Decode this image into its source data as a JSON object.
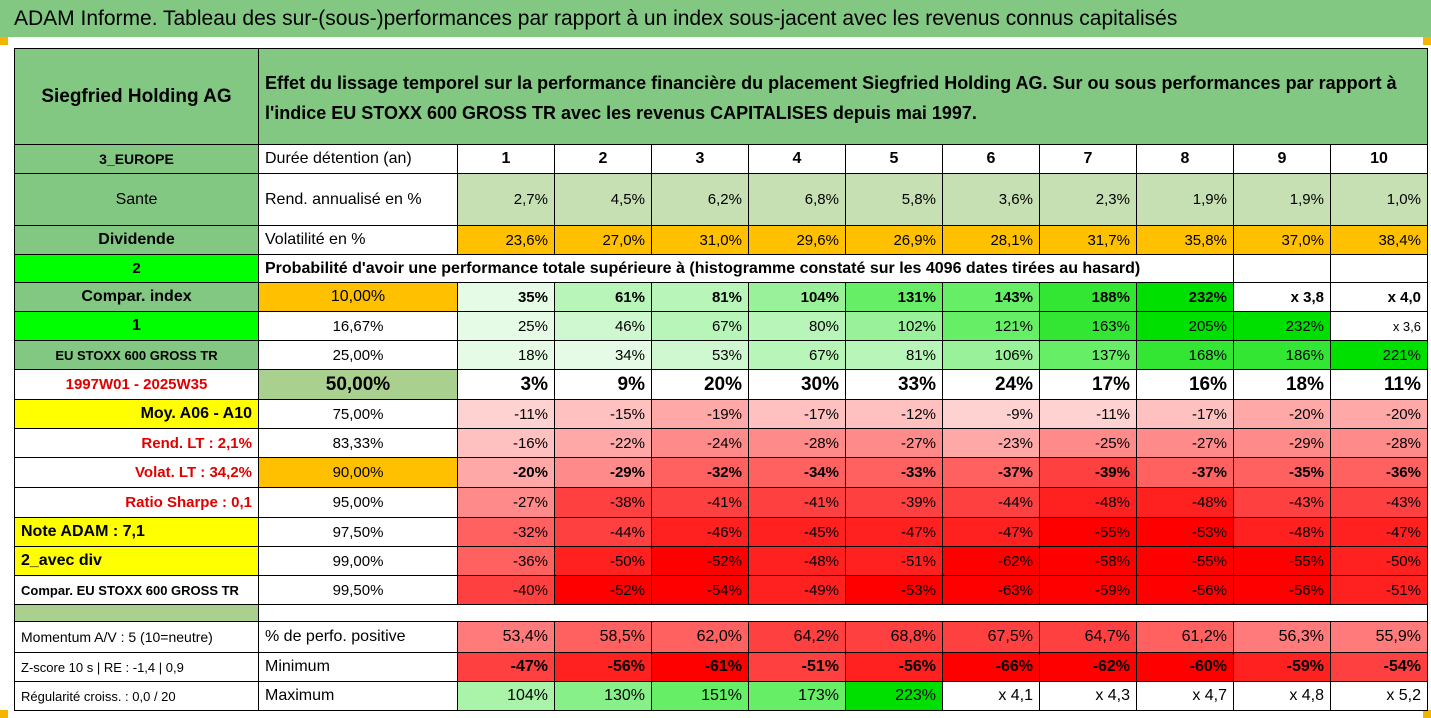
{
  "title": "ADAM Informe. Tableau des sur-(sous-)performances par rapport à un index sous-jacent avec les revenus connus capitalisés",
  "company": "Siegfried Holding AG",
  "description": "Effet du lissage temporel sur la performance financière du placement Siegfried Holding AG. Sur ou sous performances par rapport à l'indice EU STOXX 600 GROSS TR avec les revenus CAPITALISES depuis mai 1997.",
  "years_label": "Durée détention (an)",
  "years": [
    "1",
    "2",
    "3",
    "4",
    "5",
    "6",
    "7",
    "8",
    "9",
    "10"
  ],
  "left_labels": {
    "region": "3_EUROPE",
    "sector": "Sante",
    "type": "Dividende",
    "index_count": "2",
    "compar_index": "Compar. index",
    "flag": "1",
    "index_name": "EU STOXX 600 GROSS TR",
    "period": "1997W01 - 2025W35",
    "moy": "Moy. A06 - A10",
    "rend_lt": "Rend. LT :   2,1%",
    "volat_lt": "Volat. LT :   34,2%",
    "sharpe": "Ratio Sharpe :   0,1",
    "note": "Note ADAM : 7,1",
    "avec_div": "2_avec div",
    "compar_full": "Compar. EU STOXX 600 GROSS TR",
    "momentum": "Momentum A/V : 5 (10=neutre)",
    "zscore": "Z-score 10 s  |  RE : -1,4  |  0,9",
    "regularite": "Régularité croiss. : 0,0 / 20"
  },
  "rend": {
    "label": "Rend. annualisé en %",
    "values": [
      "2,7%",
      "4,5%",
      "6,2%",
      "6,8%",
      "5,8%",
      "3,6%",
      "2,3%",
      "1,9%",
      "1,9%",
      "1,0%"
    ]
  },
  "vol": {
    "label": "Volatilité en %",
    "values": [
      "23,6%",
      "27,0%",
      "31,0%",
      "29,6%",
      "26,9%",
      "28,1%",
      "31,7%",
      "35,8%",
      "37,0%",
      "38,4%"
    ]
  },
  "prob_title": "Probabilité d'avoir une performance totale supérieure à (histogramme constaté sur les 4096 dates tirées au hasard)",
  "quantiles": [
    {
      "p": "10,00%",
      "values": [
        "35%",
        "61%",
        "81%",
        "104%",
        "131%",
        "143%",
        "188%",
        "232%",
        "x 3,8",
        "x 4,0"
      ]
    },
    {
      "p": "16,67%",
      "values": [
        "25%",
        "46%",
        "67%",
        "80%",
        "102%",
        "121%",
        "163%",
        "205%",
        "232%",
        "x 3,6"
      ]
    },
    {
      "p": "25,00%",
      "values": [
        "18%",
        "34%",
        "53%",
        "67%",
        "81%",
        "106%",
        "137%",
        "168%",
        "186%",
        "221%"
      ]
    },
    {
      "p": "50,00%",
      "values": [
        "3%",
        "9%",
        "20%",
        "30%",
        "33%",
        "24%",
        "17%",
        "16%",
        "18%",
        "11%"
      ]
    },
    {
      "p": "75,00%",
      "values": [
        "-11%",
        "-15%",
        "-19%",
        "-17%",
        "-12%",
        "-9%",
        "-11%",
        "-17%",
        "-20%",
        "-20%"
      ]
    },
    {
      "p": "83,33%",
      "values": [
        "-16%",
        "-22%",
        "-24%",
        "-28%",
        "-27%",
        "-23%",
        "-25%",
        "-27%",
        "-29%",
        "-28%"
      ]
    },
    {
      "p": "90,00%",
      "values": [
        "-20%",
        "-29%",
        "-32%",
        "-34%",
        "-33%",
        "-37%",
        "-39%",
        "-37%",
        "-35%",
        "-36%"
      ]
    },
    {
      "p": "95,00%",
      "values": [
        "-27%",
        "-38%",
        "-41%",
        "-41%",
        "-39%",
        "-44%",
        "-48%",
        "-48%",
        "-43%",
        "-43%"
      ]
    },
    {
      "p": "97,50%",
      "values": [
        "-32%",
        "-44%",
        "-46%",
        "-45%",
        "-47%",
        "-47%",
        "-55%",
        "-53%",
        "-48%",
        "-47%"
      ]
    },
    {
      "p": "99,00%",
      "values": [
        "-36%",
        "-50%",
        "-52%",
        "-48%",
        "-51%",
        "-62%",
        "-58%",
        "-55%",
        "-55%",
        "-50%"
      ]
    },
    {
      "p": "99,50%",
      "values": [
        "-40%",
        "-52%",
        "-54%",
        "-49%",
        "-53%",
        "-63%",
        "-59%",
        "-56%",
        "-56%",
        "-51%"
      ]
    }
  ],
  "pos": {
    "label": "% de perfo. positive",
    "values": [
      "53,4%",
      "58,5%",
      "62,0%",
      "64,2%",
      "68,8%",
      "67,5%",
      "64,7%",
      "61,2%",
      "56,3%",
      "55,9%"
    ]
  },
  "min": {
    "label": "Minimum",
    "values": [
      "-47%",
      "-56%",
      "-61%",
      "-51%",
      "-56%",
      "-66%",
      "-62%",
      "-60%",
      "-59%",
      "-54%"
    ]
  },
  "max": {
    "label": "Maximum",
    "values": [
      "104%",
      "130%",
      "151%",
      "173%",
      "223%",
      "x 4,1",
      "x 4,3",
      "x 4,7",
      "x 4,8",
      "x 5,2"
    ]
  },
  "colors": {
    "header_green": "#82c882",
    "bright_green": "#00ff00",
    "orange": "#ffc000",
    "yellow": "#ffff00",
    "light_green": "#c6e0b4",
    "red": "#ff0000"
  }
}
